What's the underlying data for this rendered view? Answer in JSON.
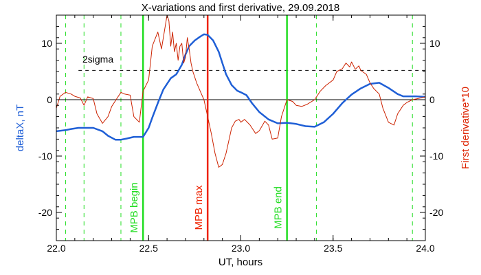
{
  "chart_data": {
    "type": "line",
    "title": "X-variations and first derivative, 29.09.2018",
    "xlabel": "UT, hours",
    "ylabel_left": "deltaX, nT",
    "ylabel_right": "First derivative*10",
    "xlim": [
      22.0,
      24.0
    ],
    "ylim": [
      -25,
      15
    ],
    "x_ticks": [
      "22.0",
      "22.5",
      "23.0",
      "23.5",
      "24.0"
    ],
    "x_tick_values": [
      22.0,
      22.5,
      23.0,
      23.5,
      24.0
    ],
    "y_ticks": [
      "-20",
      "-10",
      "0",
      "10"
    ],
    "y_tick_values": [
      -20,
      -10,
      0,
      10
    ],
    "grid": false,
    "colors": {
      "deltaX": "#1f5fd6",
      "derivative": "#cc2200",
      "green": "#22dd22",
      "red": "#ee2200",
      "axis_right": "#dd2200"
    },
    "threshold": {
      "label": "2sigma",
      "value": 5.2
    },
    "markers": [
      {
        "label": "MPB begin",
        "x": 22.47,
        "color": "#22dd22"
      },
      {
        "label": "MPB max",
        "x": 22.82,
        "color": "#ee2200"
      },
      {
        "label": "MPB end",
        "x": 23.25,
        "color": "#22dd22"
      }
    ],
    "dashed_verticals": [
      22.05,
      22.15,
      22.35,
      23.41,
      23.93
    ],
    "series": [
      {
        "key": "deltaX",
        "x": [
          22.0,
          22.05,
          22.08,
          22.12,
          22.15,
          22.2,
          22.25,
          22.28,
          22.32,
          22.35,
          22.38,
          22.42,
          22.47,
          22.5,
          22.52,
          22.55,
          22.58,
          22.62,
          22.65,
          22.68,
          22.7,
          22.72,
          22.75,
          22.78,
          22.8,
          22.82,
          22.85,
          22.88,
          22.9,
          22.92,
          22.95,
          22.98,
          23.0,
          23.03,
          23.06,
          23.1,
          23.15,
          23.2,
          23.25,
          23.3,
          23.35,
          23.4,
          23.45,
          23.5,
          23.55,
          23.6,
          23.65,
          23.7,
          23.75,
          23.8,
          23.85,
          23.88,
          23.9,
          23.95,
          24.0
        ],
        "values": [
          -5.6,
          -5.4,
          -5.2,
          -5.0,
          -5.0,
          -5.0,
          -5.6,
          -6.4,
          -7.1,
          -7.1,
          -6.9,
          -6.6,
          -6.6,
          -5.0,
          -3.2,
          -0.6,
          1.8,
          3.8,
          4.5,
          6.2,
          8.0,
          9.5,
          10.5,
          11.2,
          11.6,
          11.5,
          10.5,
          8.5,
          6.5,
          4.5,
          2.6,
          1.6,
          1.3,
          0.8,
          -0.6,
          -2.2,
          -3.5,
          -4.2,
          -4.1,
          -4.3,
          -4.7,
          -4.8,
          -4.0,
          -2.5,
          -0.6,
          0.9,
          2.0,
          2.8,
          3.0,
          2.1,
          1.0,
          0.6,
          0.6,
          0.6,
          0.5
        ]
      },
      {
        "key": "derivative",
        "x": [
          22.0,
          22.02,
          22.05,
          22.08,
          22.1,
          22.13,
          22.15,
          22.17,
          22.2,
          22.22,
          22.25,
          22.28,
          22.3,
          22.33,
          22.35,
          22.37,
          22.4,
          22.42,
          22.45,
          22.47,
          22.5,
          22.52,
          22.55,
          22.57,
          22.58,
          22.6,
          22.61,
          22.62,
          22.63,
          22.64,
          22.65,
          22.66,
          22.67,
          22.68,
          22.69,
          22.7,
          22.71,
          22.72,
          22.73,
          22.74,
          22.76,
          22.78,
          22.8,
          22.82,
          22.84,
          22.86,
          22.88,
          22.9,
          22.92,
          22.95,
          22.97,
          22.99,
          23.0,
          23.02,
          23.05,
          23.08,
          23.1,
          23.13,
          23.15,
          23.17,
          23.2,
          23.22,
          23.25,
          23.28,
          23.3,
          23.33,
          23.36,
          23.4,
          23.43,
          23.46,
          23.5,
          23.52,
          23.55,
          23.57,
          23.59,
          23.6,
          23.62,
          23.64,
          23.65,
          23.68,
          23.7,
          23.72,
          23.75,
          23.77,
          23.8,
          23.83,
          23.85,
          23.88,
          23.9,
          23.93,
          23.96,
          24.0
        ],
        "values": [
          -1.5,
          0.6,
          1.3,
          1.0,
          0.6,
          0.3,
          -1.0,
          0.5,
          0.2,
          -2.5,
          -4.2,
          -3.0,
          -1.2,
          0.3,
          1.3,
          1.0,
          0.8,
          -3.0,
          -4.0,
          1.5,
          3.5,
          9.5,
          12.0,
          9.0,
          11.0,
          15.0,
          14.0,
          9.5,
          12.0,
          8.5,
          10.0,
          7.0,
          9.5,
          10.0,
          6.5,
          7.5,
          11.0,
          9.0,
          6.5,
          5.0,
          3.0,
          1.5,
          0.0,
          -3.0,
          -6.0,
          -9.5,
          -12.0,
          -11.5,
          -9.5,
          -5.0,
          -3.8,
          -3.5,
          -4.0,
          -3.5,
          -4.5,
          -6.0,
          -5.5,
          -3.8,
          -4.5,
          -7.0,
          -6.8,
          -3.0,
          0.0,
          -0.3,
          -1.0,
          -1.2,
          -0.8,
          0.0,
          1.5,
          2.5,
          3.5,
          5.0,
          5.5,
          6.5,
          5.8,
          6.7,
          5.4,
          6.0,
          5.2,
          4.5,
          3.0,
          2.0,
          1.0,
          -1.5,
          -4.0,
          -4.5,
          -2.5,
          -1.0,
          -0.5,
          0.0,
          0.2,
          0.5
        ]
      }
    ]
  }
}
